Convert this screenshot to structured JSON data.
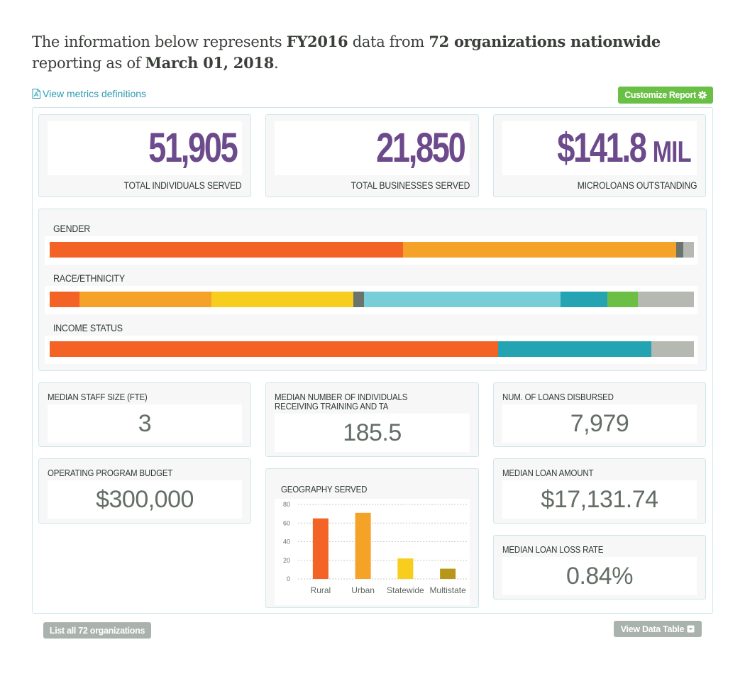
{
  "intro": {
    "prefix": "The information below represents ",
    "fiscal_year": "FY2016",
    "middle": " data from ",
    "org_count": "72 organizations nationwide",
    "line2_prefix": "reporting as of ",
    "report_date": "March 01, 2018",
    "suffix": "."
  },
  "links": {
    "metrics_definitions": "View metrics definitions"
  },
  "buttons": {
    "customize_report": "Customize Report",
    "list_organizations": "List all 72 organizations",
    "view_data_table": "View Data Table"
  },
  "headline_stats": [
    {
      "value": "51,905",
      "unit": "",
      "label": "TOTAL INDIVIDUALS SERVED"
    },
    {
      "value": "21,850",
      "unit": "",
      "label": "TOTAL BUSINESSES SERVED"
    },
    {
      "value": "$141.8",
      "unit": "MIL",
      "label": "MICROLOANS OUTSTANDING"
    }
  ],
  "demographics": [
    {
      "label": "GENDER",
      "segments": [
        {
          "share": 54.8,
          "color": "#f26325"
        },
        {
          "share": 42.5,
          "color": "#f5a228"
        },
        {
          "share": 1.0,
          "color": "#6a746c"
        },
        {
          "share": 1.7,
          "color": "#b6b8b2"
        }
      ]
    },
    {
      "label": "RACE/ETHNICITY",
      "segments": [
        {
          "share": 4.6,
          "color": "#f26325"
        },
        {
          "share": 20.5,
          "color": "#f5a228"
        },
        {
          "share": 22.0,
          "color": "#f7cd1e"
        },
        {
          "share": 1.7,
          "color": "#6a746c"
        },
        {
          "share": 30.5,
          "color": "#77ced7"
        },
        {
          "share": 7.3,
          "color": "#24a3b2"
        },
        {
          "share": 4.7,
          "color": "#6cbf45"
        },
        {
          "share": 8.7,
          "color": "#b6b8b2"
        }
      ]
    },
    {
      "label": "INCOME STATUS",
      "segments": [
        {
          "share": 69.6,
          "color": "#f26325"
        },
        {
          "share": 23.8,
          "color": "#24a3b2"
        },
        {
          "share": 6.6,
          "color": "#b6b8b2"
        }
      ]
    }
  ],
  "stats": {
    "staff_size": {
      "label": "MEDIAN STAFF SIZE (FTE)",
      "value": "3"
    },
    "operating_budget": {
      "label": "OPERATING PROGRAM BUDGET",
      "value": "$300,000"
    },
    "training": {
      "label": "MEDIAN NUMBER OF INDIVIDUALS RECEIVING TRAINING AND TA",
      "value": "185.5"
    },
    "loans_disbursed": {
      "label": "NUM. OF LOANS DISBURSED",
      "value": "7,979"
    },
    "median_loan": {
      "label": "MEDIAN LOAN AMOUNT",
      "value": "$17,131.74"
    },
    "loss_rate": {
      "label": "MEDIAN LOAN LOSS RATE",
      "value": "0.84%"
    }
  },
  "chart_data": {
    "type": "bar",
    "title": "GEOGRAPHY SERVED",
    "categories": [
      "Rural",
      "Urban",
      "Statewide",
      "Multistate"
    ],
    "values": [
      65,
      71,
      22,
      11
    ],
    "colors": [
      "#f26325",
      "#f5a228",
      "#f7cd1e",
      "#b8961a"
    ],
    "xlabel": "",
    "ylabel": "",
    "ylim": [
      0,
      80
    ],
    "yticks": [
      0,
      20,
      40,
      60,
      80
    ],
    "grid": true,
    "legend": "none"
  }
}
